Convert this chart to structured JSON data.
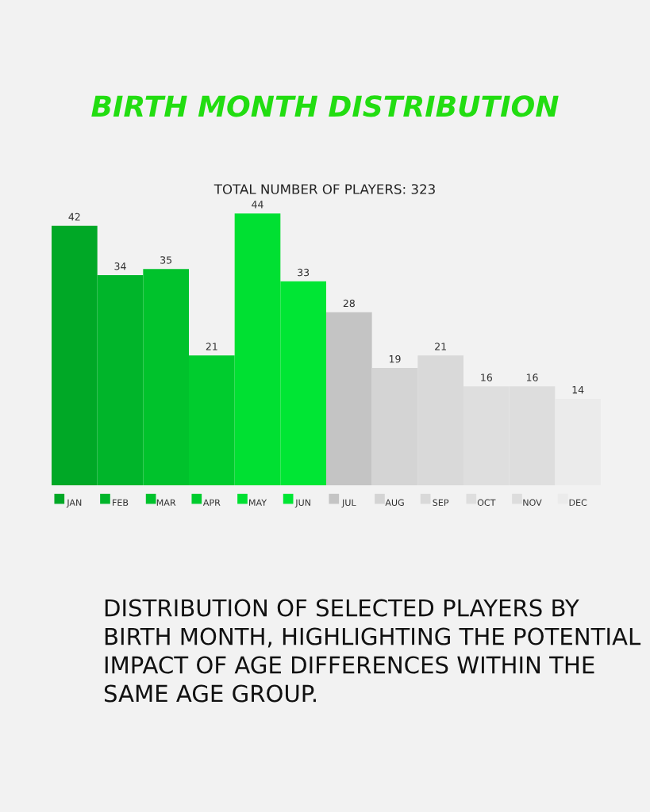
{
  "chart_data": {
    "type": "bar",
    "title": "BIRTH MONTH DISTRIBUTION",
    "subtitle": "TOTAL NUMBER OF PLAYERS: 323",
    "categories": [
      "JAN",
      "FEB",
      "MAR",
      "APR",
      "MAY",
      "JUN",
      "JUL",
      "AUG",
      "SEP",
      "OCT",
      "NOV",
      "DEC"
    ],
    "values": [
      42,
      34,
      35,
      21,
      44,
      33,
      28,
      19,
      21,
      16,
      16,
      14
    ],
    "colors": [
      "#00a826",
      "#00b52a",
      "#00c22c",
      "#00cc2e",
      "#00e032",
      "#00e634",
      "#c4c4c4",
      "#d4d4d4",
      "#d9d9d9",
      "#dedede",
      "#dddddd",
      "#ebebeb"
    ],
    "data_labels": true,
    "tick_labels": "x",
    "annotations": [
      "DISTRIBUTION OF SELECTED PLAYERS BY BIRTH MONTH, HIGHLIGHTING THE POTENTIAL IMPACT OF AGE DIFFERENCES WITHIN THE SAME AGE GROUP."
    ]
  }
}
